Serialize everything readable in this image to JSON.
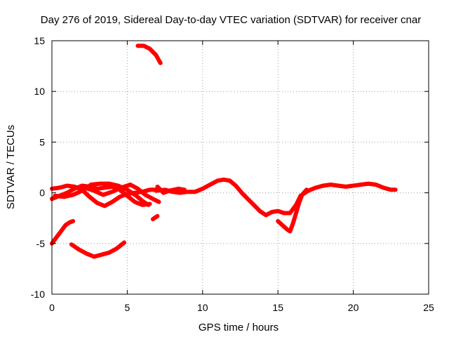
{
  "chart_data": {
    "type": "scatter",
    "title": "Day 276 of 2019, Sidereal Day-to-day VTEC variation (SDTVAR) for receiver cnar",
    "xlabel": "GPS time / hours",
    "ylabel": "SDTVAR / TECUs",
    "xlim": [
      0,
      25
    ],
    "ylim": [
      -10,
      15
    ],
    "xticks": [
      "0",
      "5",
      "10",
      "15",
      "20",
      "25"
    ],
    "yticks": [
      "15",
      "10",
      "5",
      "0",
      "-5",
      "-10"
    ],
    "grid": true,
    "color": "#ff0000",
    "series": [
      {
        "name": "arc-main",
        "points": [
          [
            6.9,
            0.2
          ],
          [
            7.5,
            0.3
          ],
          [
            8.0,
            0.1
          ],
          [
            8.5,
            0.0
          ],
          [
            9.0,
            0.1
          ],
          [
            9.5,
            0.1
          ],
          [
            10.0,
            0.4
          ],
          [
            10.5,
            0.8
          ],
          [
            11.0,
            1.2
          ],
          [
            11.4,
            1.3
          ],
          [
            11.8,
            1.2
          ],
          [
            12.2,
            0.7
          ],
          [
            12.6,
            0.0
          ],
          [
            13.0,
            -0.6
          ],
          [
            13.4,
            -1.2
          ],
          [
            13.8,
            -1.8
          ],
          [
            14.2,
            -2.2
          ],
          [
            14.6,
            -1.9
          ],
          [
            15.0,
            -1.8
          ],
          [
            15.4,
            -2.0
          ],
          [
            15.8,
            -2.0
          ],
          [
            16.2,
            -1.2
          ],
          [
            16.5,
            -0.3
          ],
          [
            17.0,
            0.2
          ],
          [
            17.5,
            0.5
          ],
          [
            18.0,
            0.7
          ],
          [
            18.5,
            0.8
          ],
          [
            19.0,
            0.7
          ],
          [
            19.5,
            0.6
          ],
          [
            20.0,
            0.7
          ],
          [
            20.5,
            0.8
          ],
          [
            21.0,
            0.9
          ],
          [
            21.5,
            0.8
          ],
          [
            22.0,
            0.5
          ],
          [
            22.5,
            0.3
          ],
          [
            22.8,
            0.3
          ]
        ]
      },
      {
        "name": "arc-dip",
        "points": [
          [
            15.0,
            -2.8
          ],
          [
            15.3,
            -3.2
          ],
          [
            15.6,
            -3.6
          ],
          [
            15.8,
            -3.8
          ],
          [
            16.0,
            -3.0
          ],
          [
            16.2,
            -2.0
          ],
          [
            16.4,
            -1.0
          ],
          [
            16.6,
            -0.2
          ],
          [
            16.9,
            0.3
          ]
        ]
      },
      {
        "name": "arc-high",
        "points": [
          [
            5.7,
            14.5
          ],
          [
            6.1,
            14.5
          ],
          [
            6.5,
            14.2
          ],
          [
            6.9,
            13.6
          ],
          [
            7.2,
            12.8
          ]
        ]
      },
      {
        "name": "arc-left-rise",
        "points": [
          [
            0.0,
            -5.0
          ],
          [
            0.3,
            -4.4
          ],
          [
            0.6,
            -3.8
          ],
          [
            0.9,
            -3.2
          ],
          [
            1.2,
            -2.9
          ],
          [
            1.4,
            -2.8
          ]
        ]
      },
      {
        "name": "arc-low",
        "points": [
          [
            1.3,
            -5.1
          ],
          [
            1.8,
            -5.6
          ],
          [
            2.3,
            -6.0
          ],
          [
            2.8,
            -6.3
          ],
          [
            3.3,
            -6.1
          ],
          [
            3.8,
            -5.9
          ],
          [
            4.3,
            -5.5
          ],
          [
            4.8,
            -4.9
          ]
        ]
      },
      {
        "name": "arc-band-a",
        "points": [
          [
            0.0,
            0.4
          ],
          [
            0.5,
            0.5
          ],
          [
            1.0,
            0.7
          ],
          [
            1.5,
            0.6
          ],
          [
            2.0,
            0.3
          ],
          [
            2.5,
            -0.4
          ],
          [
            3.0,
            -1.0
          ],
          [
            3.5,
            -1.3
          ],
          [
            4.0,
            -0.9
          ],
          [
            4.5,
            -0.4
          ],
          [
            5.0,
            -0.1
          ],
          [
            5.5,
            0.0
          ],
          [
            6.0,
            0.1
          ],
          [
            6.5,
            0.3
          ],
          [
            7.0,
            0.3
          ]
        ]
      },
      {
        "name": "arc-band-b",
        "points": [
          [
            0.0,
            -0.6
          ],
          [
            0.5,
            -0.3
          ],
          [
            1.0,
            0.0
          ],
          [
            1.5,
            0.4
          ],
          [
            2.0,
            0.7
          ],
          [
            2.5,
            0.6
          ],
          [
            3.0,
            0.4
          ],
          [
            3.5,
            0.5
          ],
          [
            4.0,
            0.6
          ],
          [
            4.5,
            0.3
          ],
          [
            5.0,
            -0.3
          ],
          [
            5.5,
            -0.9
          ],
          [
            6.0,
            -1.2
          ],
          [
            6.5,
            -1.1
          ]
        ]
      },
      {
        "name": "arc-band-c",
        "points": [
          [
            0.2,
            -0.3
          ],
          [
            0.8,
            -0.4
          ],
          [
            1.4,
            -0.2
          ],
          [
            2.0,
            0.2
          ],
          [
            2.6,
            0.8
          ],
          [
            3.2,
            0.9
          ],
          [
            3.8,
            0.9
          ],
          [
            4.4,
            0.7
          ],
          [
            5.0,
            0.3
          ],
          [
            5.6,
            -0.3
          ],
          [
            6.0,
            -0.8
          ],
          [
            6.4,
            -1.2
          ]
        ]
      },
      {
        "name": "arc-band-d",
        "points": [
          [
            2.2,
            0.5
          ],
          [
            2.8,
            0.2
          ],
          [
            3.4,
            -0.2
          ],
          [
            4.0,
            0.1
          ],
          [
            4.6,
            0.5
          ],
          [
            5.2,
            0.8
          ],
          [
            5.7,
            0.4
          ],
          [
            6.2,
            -0.2
          ],
          [
            6.7,
            -0.6
          ],
          [
            7.1,
            -0.9
          ]
        ]
      },
      {
        "name": "arc-short",
        "points": [
          [
            6.7,
            -2.6
          ],
          [
            7.0,
            -2.3
          ]
        ]
      },
      {
        "name": "arc-mid",
        "points": [
          [
            7.0,
            0.6
          ],
          [
            7.4,
            0.0
          ],
          [
            7.8,
            0.2
          ],
          [
            8.4,
            0.4
          ],
          [
            8.8,
            0.3
          ]
        ]
      }
    ]
  }
}
